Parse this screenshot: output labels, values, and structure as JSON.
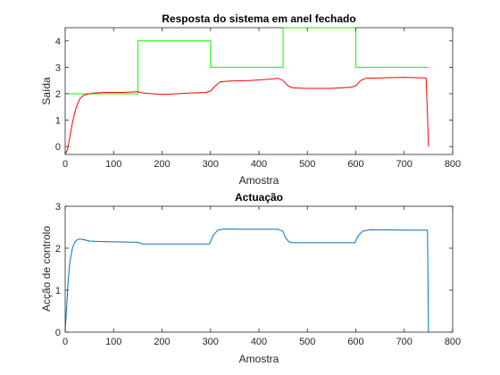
{
  "chart_data": [
    {
      "type": "line",
      "title": "Resposta do sistema em anel fechado",
      "xlabel": "Amostra",
      "ylabel": "Saída",
      "xlim": [
        0,
        800
      ],
      "ylim": [
        -0.3,
        4.5
      ],
      "xticks": [
        "0",
        "100",
        "200",
        "300",
        "400",
        "500",
        "600",
        "700",
        "800"
      ],
      "yticks": [
        "0",
        "1",
        "2",
        "3",
        "4"
      ],
      "grid": false,
      "series": [
        {
          "color": "#00ff00",
          "x": [
            0,
            150,
            150,
            300,
            300,
            450,
            450,
            600,
            600,
            750
          ],
          "y": [
            2.0,
            2.0,
            4.0,
            4.0,
            3.0,
            3.0,
            4.5,
            4.5,
            3.0,
            3.0
          ]
        },
        {
          "color": "#ff0000",
          "x": [
            0,
            5,
            10,
            15,
            20,
            25,
            30,
            35,
            40,
            50,
            60,
            80,
            100,
            120,
            150,
            160,
            180,
            200,
            230,
            260,
            290,
            300,
            310,
            320,
            340,
            380,
            420,
            440,
            450,
            460,
            470,
            500,
            550,
            590,
            600,
            610,
            620,
            650,
            700,
            745,
            748,
            750
          ],
          "y": [
            -0.3,
            -0.1,
            0.4,
            0.9,
            1.3,
            1.6,
            1.8,
            1.9,
            1.95,
            2.0,
            2.03,
            2.05,
            2.05,
            2.05,
            2.08,
            2.03,
            2.0,
            1.97,
            2.0,
            2.03,
            2.05,
            2.1,
            2.3,
            2.45,
            2.48,
            2.5,
            2.55,
            2.58,
            2.5,
            2.3,
            2.22,
            2.2,
            2.2,
            2.25,
            2.3,
            2.5,
            2.58,
            2.6,
            2.62,
            2.6,
            1.2,
            0.0
          ]
        }
      ]
    },
    {
      "type": "line",
      "title": "Actuação",
      "xlabel": "Amostra",
      "ylabel": "Acção de controlo",
      "xlim": [
        0,
        800
      ],
      "ylim": [
        0,
        3
      ],
      "xticks": [
        "0",
        "100",
        "200",
        "300",
        "400",
        "500",
        "600",
        "700",
        "800"
      ],
      "yticks": [
        "0",
        "1",
        "2",
        "3"
      ],
      "grid": false,
      "series": [
        {
          "color": "#0072bd",
          "x": [
            0,
            3,
            6,
            10,
            15,
            20,
            25,
            30,
            40,
            50,
            70,
            100,
            150,
            160,
            200,
            250,
            298,
            305,
            315,
            330,
            360,
            400,
            440,
            450,
            455,
            462,
            470,
            500,
            550,
            598,
            605,
            615,
            630,
            700,
            748,
            750
          ],
          "y": [
            0,
            0.6,
            1.2,
            1.7,
            2.0,
            2.15,
            2.2,
            2.22,
            2.2,
            2.17,
            2.16,
            2.15,
            2.14,
            2.1,
            2.1,
            2.1,
            2.1,
            2.3,
            2.43,
            2.46,
            2.45,
            2.45,
            2.45,
            2.4,
            2.25,
            2.15,
            2.13,
            2.13,
            2.13,
            2.13,
            2.3,
            2.41,
            2.44,
            2.43,
            2.43,
            0
          ]
        }
      ]
    }
  ]
}
